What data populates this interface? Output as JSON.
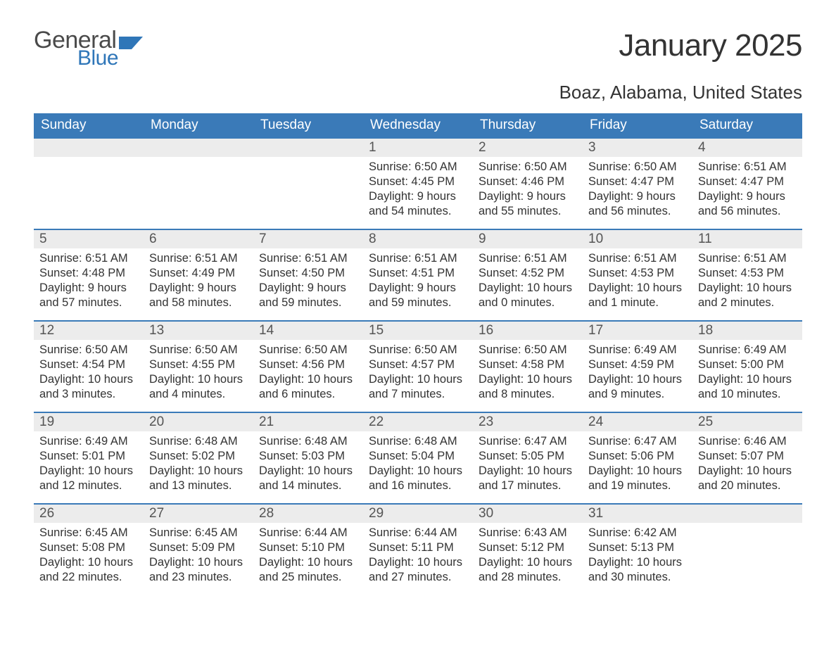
{
  "logo": {
    "word1": "General",
    "word2": "Blue",
    "accent_color": "#2f76b8",
    "text_color": "#4a4a4a"
  },
  "title": "January 2025",
  "location": "Boaz, Alabama, United States",
  "colors": {
    "header_bg": "#3a7ab8",
    "header_text": "#ffffff",
    "daynum_bg": "#ececec",
    "body_text": "#333333",
    "border": "#3a7ab8",
    "page_bg": "#ffffff"
  },
  "typography": {
    "title_fontsize": 44,
    "location_fontsize": 26,
    "th_fontsize": 19,
    "daynum_fontsize": 19,
    "body_fontsize": 16.5
  },
  "day_labels": [
    "Sunday",
    "Monday",
    "Tuesday",
    "Wednesday",
    "Thursday",
    "Friday",
    "Saturday"
  ],
  "weeks": [
    [
      null,
      null,
      null,
      {
        "num": "1",
        "sunrise": "Sunrise: 6:50 AM",
        "sunset": "Sunset: 4:45 PM",
        "daylight": "Daylight: 9 hours and 54 minutes."
      },
      {
        "num": "2",
        "sunrise": "Sunrise: 6:50 AM",
        "sunset": "Sunset: 4:46 PM",
        "daylight": "Daylight: 9 hours and 55 minutes."
      },
      {
        "num": "3",
        "sunrise": "Sunrise: 6:50 AM",
        "sunset": "Sunset: 4:47 PM",
        "daylight": "Daylight: 9 hours and 56 minutes."
      },
      {
        "num": "4",
        "sunrise": "Sunrise: 6:51 AM",
        "sunset": "Sunset: 4:47 PM",
        "daylight": "Daylight: 9 hours and 56 minutes."
      }
    ],
    [
      {
        "num": "5",
        "sunrise": "Sunrise: 6:51 AM",
        "sunset": "Sunset: 4:48 PM",
        "daylight": "Daylight: 9 hours and 57 minutes."
      },
      {
        "num": "6",
        "sunrise": "Sunrise: 6:51 AM",
        "sunset": "Sunset: 4:49 PM",
        "daylight": "Daylight: 9 hours and 58 minutes."
      },
      {
        "num": "7",
        "sunrise": "Sunrise: 6:51 AM",
        "sunset": "Sunset: 4:50 PM",
        "daylight": "Daylight: 9 hours and 59 minutes."
      },
      {
        "num": "8",
        "sunrise": "Sunrise: 6:51 AM",
        "sunset": "Sunset: 4:51 PM",
        "daylight": "Daylight: 9 hours and 59 minutes."
      },
      {
        "num": "9",
        "sunrise": "Sunrise: 6:51 AM",
        "sunset": "Sunset: 4:52 PM",
        "daylight": "Daylight: 10 hours and 0 minutes."
      },
      {
        "num": "10",
        "sunrise": "Sunrise: 6:51 AM",
        "sunset": "Sunset: 4:53 PM",
        "daylight": "Daylight: 10 hours and 1 minute."
      },
      {
        "num": "11",
        "sunrise": "Sunrise: 6:51 AM",
        "sunset": "Sunset: 4:53 PM",
        "daylight": "Daylight: 10 hours and 2 minutes."
      }
    ],
    [
      {
        "num": "12",
        "sunrise": "Sunrise: 6:50 AM",
        "sunset": "Sunset: 4:54 PM",
        "daylight": "Daylight: 10 hours and 3 minutes."
      },
      {
        "num": "13",
        "sunrise": "Sunrise: 6:50 AM",
        "sunset": "Sunset: 4:55 PM",
        "daylight": "Daylight: 10 hours and 4 minutes."
      },
      {
        "num": "14",
        "sunrise": "Sunrise: 6:50 AM",
        "sunset": "Sunset: 4:56 PM",
        "daylight": "Daylight: 10 hours and 6 minutes."
      },
      {
        "num": "15",
        "sunrise": "Sunrise: 6:50 AM",
        "sunset": "Sunset: 4:57 PM",
        "daylight": "Daylight: 10 hours and 7 minutes."
      },
      {
        "num": "16",
        "sunrise": "Sunrise: 6:50 AM",
        "sunset": "Sunset: 4:58 PM",
        "daylight": "Daylight: 10 hours and 8 minutes."
      },
      {
        "num": "17",
        "sunrise": "Sunrise: 6:49 AM",
        "sunset": "Sunset: 4:59 PM",
        "daylight": "Daylight: 10 hours and 9 minutes."
      },
      {
        "num": "18",
        "sunrise": "Sunrise: 6:49 AM",
        "sunset": "Sunset: 5:00 PM",
        "daylight": "Daylight: 10 hours and 10 minutes."
      }
    ],
    [
      {
        "num": "19",
        "sunrise": "Sunrise: 6:49 AM",
        "sunset": "Sunset: 5:01 PM",
        "daylight": "Daylight: 10 hours and 12 minutes."
      },
      {
        "num": "20",
        "sunrise": "Sunrise: 6:48 AM",
        "sunset": "Sunset: 5:02 PM",
        "daylight": "Daylight: 10 hours and 13 minutes."
      },
      {
        "num": "21",
        "sunrise": "Sunrise: 6:48 AM",
        "sunset": "Sunset: 5:03 PM",
        "daylight": "Daylight: 10 hours and 14 minutes."
      },
      {
        "num": "22",
        "sunrise": "Sunrise: 6:48 AM",
        "sunset": "Sunset: 5:04 PM",
        "daylight": "Daylight: 10 hours and 16 minutes."
      },
      {
        "num": "23",
        "sunrise": "Sunrise: 6:47 AM",
        "sunset": "Sunset: 5:05 PM",
        "daylight": "Daylight: 10 hours and 17 minutes."
      },
      {
        "num": "24",
        "sunrise": "Sunrise: 6:47 AM",
        "sunset": "Sunset: 5:06 PM",
        "daylight": "Daylight: 10 hours and 19 minutes."
      },
      {
        "num": "25",
        "sunrise": "Sunrise: 6:46 AM",
        "sunset": "Sunset: 5:07 PM",
        "daylight": "Daylight: 10 hours and 20 minutes."
      }
    ],
    [
      {
        "num": "26",
        "sunrise": "Sunrise: 6:45 AM",
        "sunset": "Sunset: 5:08 PM",
        "daylight": "Daylight: 10 hours and 22 minutes."
      },
      {
        "num": "27",
        "sunrise": "Sunrise: 6:45 AM",
        "sunset": "Sunset: 5:09 PM",
        "daylight": "Daylight: 10 hours and 23 minutes."
      },
      {
        "num": "28",
        "sunrise": "Sunrise: 6:44 AM",
        "sunset": "Sunset: 5:10 PM",
        "daylight": "Daylight: 10 hours and 25 minutes."
      },
      {
        "num": "29",
        "sunrise": "Sunrise: 6:44 AM",
        "sunset": "Sunset: 5:11 PM",
        "daylight": "Daylight: 10 hours and 27 minutes."
      },
      {
        "num": "30",
        "sunrise": "Sunrise: 6:43 AM",
        "sunset": "Sunset: 5:12 PM",
        "daylight": "Daylight: 10 hours and 28 minutes."
      },
      {
        "num": "31",
        "sunrise": "Sunrise: 6:42 AM",
        "sunset": "Sunset: 5:13 PM",
        "daylight": "Daylight: 10 hours and 30 minutes."
      },
      null
    ]
  ]
}
